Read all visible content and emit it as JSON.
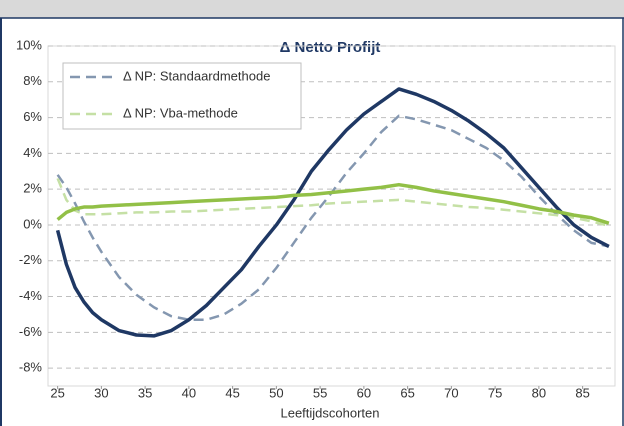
{
  "chart_data": {
    "type": "line",
    "title": "Δ Netto Profijt",
    "x_label": "Leeftijdscohorten",
    "x": [
      25,
      26,
      27,
      28,
      29,
      30,
      32,
      34,
      36,
      38,
      40,
      42,
      44,
      46,
      48,
      50,
      52,
      54,
      56,
      58,
      60,
      62,
      64,
      66,
      68,
      70,
      72,
      74,
      76,
      78,
      80,
      82,
      84,
      86,
      88
    ],
    "series": [
      {
        "name": "Δ NP: Standaardmethode",
        "color": "#8497b0",
        "dashed": true,
        "values": [
          2.8,
          2.1,
          1.2,
          0.2,
          -0.7,
          -1.5,
          -2.9,
          -3.9,
          -4.6,
          -5.1,
          -5.3,
          -5.3,
          -5.0,
          -4.4,
          -3.6,
          -2.4,
          -1.0,
          0.4,
          1.6,
          2.9,
          4.0,
          5.2,
          6.1,
          5.9,
          5.6,
          5.3,
          4.8,
          4.3,
          3.6,
          2.7,
          1.6,
          0.6,
          -0.3,
          -1.0,
          -1.2
        ]
      },
      {
        "name": "Δ NP: Vba-methode",
        "color": "#c5e0a5",
        "dashed": true,
        "values": [
          2.6,
          1.4,
          0.8,
          0.6,
          0.6,
          0.6,
          0.65,
          0.7,
          0.7,
          0.75,
          0.75,
          0.8,
          0.85,
          0.9,
          0.95,
          1.0,
          1.05,
          1.1,
          1.2,
          1.25,
          1.3,
          1.35,
          1.4,
          1.3,
          1.2,
          1.1,
          1.0,
          0.95,
          0.85,
          0.75,
          0.65,
          0.55,
          0.4,
          0.2,
          -0.05
        ]
      },
      {
        "color": "#1f3864",
        "dashed": false,
        "values": [
          -0.3,
          -2.2,
          -3.5,
          -4.3,
          -4.9,
          -5.3,
          -5.9,
          -6.15,
          -6.2,
          -5.9,
          -5.3,
          -4.5,
          -3.5,
          -2.5,
          -1.2,
          0,
          1.4,
          3.0,
          4.2,
          5.3,
          6.2,
          6.9,
          7.6,
          7.3,
          6.9,
          6.4,
          5.8,
          5.1,
          4.3,
          3.2,
          2.1,
          1.0,
          0.0,
          -0.7,
          -1.2
        ]
      },
      {
        "color": "#92c047",
        "dashed": false,
        "values": [
          0.3,
          0.7,
          0.9,
          1.0,
          1.0,
          1.05,
          1.1,
          1.15,
          1.2,
          1.25,
          1.3,
          1.35,
          1.4,
          1.45,
          1.5,
          1.55,
          1.65,
          1.7,
          1.8,
          1.9,
          2.0,
          2.1,
          2.25,
          2.1,
          1.9,
          1.75,
          1.6,
          1.45,
          1.3,
          1.1,
          0.9,
          0.75,
          0.55,
          0.4,
          0.1
        ]
      }
    ],
    "xlim": [
      23.9,
      88.7
    ],
    "xticks": [
      25,
      30,
      35,
      40,
      45,
      50,
      55,
      60,
      65,
      70,
      75,
      80,
      85
    ],
    "ylim": [
      -9,
      10
    ],
    "yticks": [
      {
        "value": 10,
        "label": "10%"
      },
      {
        "value": 8,
        "label": "8%"
      },
      {
        "value": 6,
        "label": "6%"
      },
      {
        "value": 4,
        "label": "4%"
      },
      {
        "value": 2,
        "label": "2%"
      },
      {
        "value": 0,
        "label": "0%"
      },
      {
        "value": -2,
        "label": "-2%"
      },
      {
        "value": -4,
        "label": "-4%"
      },
      {
        "value": -6,
        "label": "-6%"
      },
      {
        "value": -8,
        "label": "-8%"
      }
    ],
    "grid": true
  }
}
